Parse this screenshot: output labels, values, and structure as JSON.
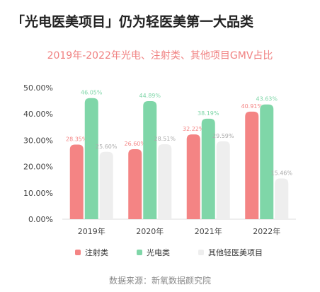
{
  "headline": "「光电医美项目」仍为轻医美第一大品类",
  "source": "数据来源：新氧数据颜究院",
  "chart_data": {
    "type": "bar",
    "title": "2019年-2022年光电、注射类、其他项目GMV占比",
    "categories": [
      "2019年",
      "2020年",
      "2021年",
      "2022年"
    ],
    "series": [
      {
        "name": "注射类",
        "values": [
          28.35,
          26.6,
          32.22,
          40.91
        ],
        "labels": [
          "28.35%",
          "26.60%",
          "32.22%",
          "40.91%"
        ],
        "color": "#f48484"
      },
      {
        "name": "光电类",
        "values": [
          46.05,
          44.89,
          38.19,
          43.63
        ],
        "labels": [
          "46.05%",
          "44.89%",
          "38.19%",
          "43.63%"
        ],
        "color": "#7fd6a8"
      },
      {
        "name": "其他轻医美项目",
        "values": [
          25.6,
          28.51,
          29.59,
          15.46
        ],
        "labels": [
          "25.60%",
          "28.51%",
          "29.59%",
          "15.46%"
        ],
        "color": "#eeeeee",
        "label_color": "#aaaaaa"
      }
    ],
    "yticks": [
      "0.00%",
      "10.00%",
      "20.00%",
      "30.00%",
      "40.00%",
      "50.00%"
    ],
    "ylim": [
      0,
      50
    ],
    "grid": false,
    "legend": "bottom"
  }
}
